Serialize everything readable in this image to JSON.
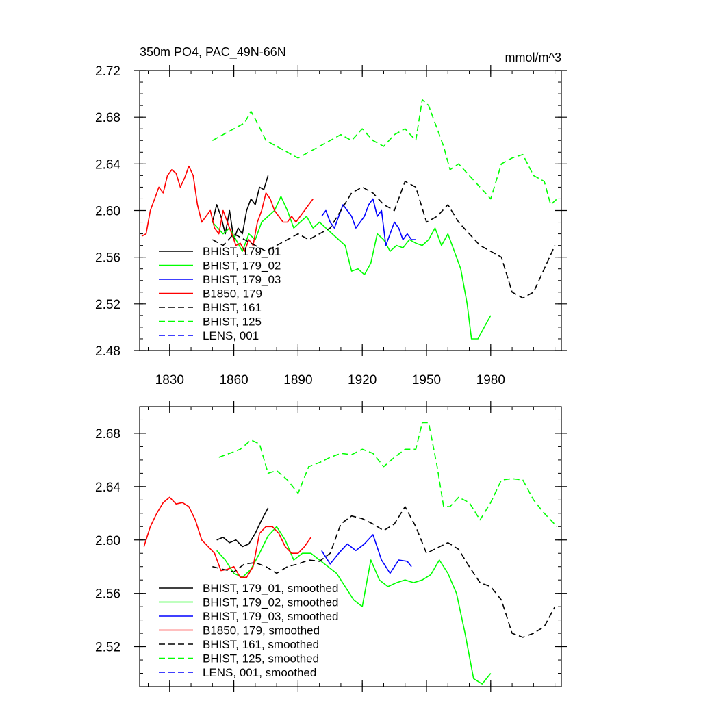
{
  "header": {
    "title": "350m PO4, PAC_49N-66N",
    "units": "mmol/m^3"
  },
  "chart_data": [
    {
      "type": "line",
      "title": "350m PO4, PAC_49N-66N",
      "units_label": "mmol/m^3",
      "xlabel": "",
      "ylabel": "",
      "xlim": [
        1816,
        2013
      ],
      "ylim": [
        2.48,
        2.72
      ],
      "xticks": [
        1830,
        1860,
        1890,
        1920,
        1950,
        1980
      ],
      "xtick_labels": [
        "1830",
        "1860",
        "1890",
        "1920",
        "1950",
        "1980"
      ],
      "yticks": [
        2.48,
        2.52,
        2.56,
        2.6,
        2.64,
        2.68,
        2.72
      ],
      "ytick_labels": [
        "2.48",
        "2.52",
        "2.56",
        "2.60",
        "2.64",
        "2.68",
        "2.72"
      ],
      "grid": false,
      "legend_position": "lower-left",
      "series": [
        {
          "name": "BHIST, 179_01",
          "color": "#000000",
          "dash": "solid",
          "x": [
            1850,
            1852,
            1854,
            1856,
            1858,
            1860,
            1862,
            1864,
            1866,
            1868,
            1870,
            1872,
            1874,
            1876
          ],
          "y": [
            2.59,
            2.605,
            2.595,
            2.58,
            2.6,
            2.575,
            2.585,
            2.58,
            2.6,
            2.61,
            2.605,
            2.62,
            2.618,
            2.63
          ]
        },
        {
          "name": "BHIST, 179_02",
          "color": "#00ff00",
          "dash": "solid",
          "x": [
            1850,
            1855,
            1858,
            1861,
            1864,
            1867,
            1870,
            1873,
            1876,
            1879,
            1882,
            1885,
            1888,
            1891,
            1894,
            1897,
            1900,
            1903,
            1906,
            1909,
            1912,
            1915,
            1918,
            1921,
            1924,
            1927,
            1930,
            1933,
            1936,
            1939,
            1942,
            1945,
            1948,
            1951,
            1954,
            1957,
            1960,
            1963,
            1966,
            1969,
            1971,
            1974,
            1977,
            1980
          ],
          "y": [
            2.59,
            2.58,
            2.585,
            2.575,
            2.565,
            2.58,
            2.575,
            2.59,
            2.595,
            2.6,
            2.612,
            2.6,
            2.585,
            2.59,
            2.595,
            2.585,
            2.59,
            2.585,
            2.58,
            2.575,
            2.57,
            2.548,
            2.55,
            2.545,
            2.555,
            2.58,
            2.575,
            2.565,
            2.57,
            2.568,
            2.575,
            2.572,
            2.57,
            2.575,
            2.585,
            2.57,
            2.58,
            2.565,
            2.55,
            2.52,
            2.49,
            2.49,
            2.5,
            2.51
          ]
        },
        {
          "name": "BHIST, 179_03",
          "color": "#0000ff",
          "dash": "solid",
          "x": [
            1901,
            1903,
            1905,
            1907,
            1909,
            1911,
            1913,
            1915,
            1917,
            1919,
            1921,
            1923,
            1925,
            1927,
            1929,
            1931,
            1933,
            1935,
            1937,
            1939,
            1941,
            1943,
            1945
          ],
          "y": [
            2.595,
            2.6,
            2.59,
            2.585,
            2.595,
            2.605,
            2.6,
            2.595,
            2.585,
            2.59,
            2.595,
            2.605,
            2.61,
            2.595,
            2.6,
            2.57,
            2.58,
            2.59,
            2.585,
            2.575,
            2.58,
            2.575,
            2.575
          ]
        },
        {
          "name": "B1850, 179",
          "color": "#ff0000",
          "dash": "solid",
          "x": [
            1817,
            1819,
            1821,
            1823,
            1825,
            1827,
            1829,
            1831,
            1833,
            1835,
            1837,
            1839,
            1841,
            1843,
            1845,
            1847,
            1849,
            1851,
            1853,
            1855,
            1857,
            1859,
            1861,
            1863,
            1865,
            1867,
            1869,
            1871,
            1873,
            1875,
            1877,
            1879,
            1881,
            1883,
            1885,
            1887,
            1889,
            1891,
            1893,
            1895,
            1897
          ],
          "y": [
            2.578,
            2.58,
            2.6,
            2.61,
            2.62,
            2.615,
            2.63,
            2.635,
            2.632,
            2.62,
            2.628,
            2.638,
            2.63,
            2.605,
            2.59,
            2.595,
            2.6,
            2.585,
            2.58,
            2.6,
            2.59,
            2.58,
            2.57,
            2.572,
            2.565,
            2.575,
            2.57,
            2.59,
            2.6,
            2.615,
            2.61,
            2.6,
            2.595,
            2.59,
            2.59,
            2.595,
            2.59,
            2.595,
            2.6,
            2.605,
            2.61
          ]
        },
        {
          "name": "BHIST, 161",
          "color": "#000000",
          "dash": "dashed",
          "x": [
            1850,
            1855,
            1860,
            1865,
            1870,
            1875,
            1880,
            1885,
            1890,
            1895,
            1900,
            1905,
            1910,
            1915,
            1920,
            1925,
            1930,
            1935,
            1940,
            1945,
            1950,
            1955,
            1960,
            1965,
            1970,
            1975,
            1980,
            1985,
            1990,
            1995,
            2000,
            2005,
            2010
          ],
          "y": [
            2.575,
            2.57,
            2.58,
            2.575,
            2.57,
            2.565,
            2.57,
            2.575,
            2.58,
            2.575,
            2.58,
            2.585,
            2.6,
            2.615,
            2.62,
            2.615,
            2.605,
            2.6,
            2.625,
            2.62,
            2.59,
            2.595,
            2.605,
            2.59,
            2.58,
            2.57,
            2.565,
            2.56,
            2.53,
            2.525,
            2.53,
            2.55,
            2.57
          ]
        },
        {
          "name": "BHIST, 125",
          "color": "#00ff00",
          "dash": "dashed",
          "x": [
            1850,
            1855,
            1860,
            1865,
            1868,
            1871,
            1875,
            1880,
            1885,
            1890,
            1895,
            1900,
            1905,
            1910,
            1915,
            1920,
            1925,
            1930,
            1935,
            1940,
            1945,
            1948,
            1951,
            1955,
            1958,
            1961,
            1965,
            1970,
            1975,
            1980,
            1985,
            1990,
            1995,
            2000,
            2005,
            2008,
            2011
          ],
          "y": [
            2.66,
            2.665,
            2.67,
            2.675,
            2.685,
            2.675,
            2.66,
            2.655,
            2.65,
            2.645,
            2.65,
            2.655,
            2.66,
            2.665,
            2.66,
            2.67,
            2.66,
            2.655,
            2.665,
            2.67,
            2.66,
            2.695,
            2.69,
            2.67,
            2.655,
            2.635,
            2.64,
            2.63,
            2.62,
            2.61,
            2.64,
            2.645,
            2.648,
            2.63,
            2.625,
            2.605,
            2.61
          ]
        },
        {
          "name": "LENS, 001",
          "color": "#0000ff",
          "dash": "dashed",
          "x": [],
          "y": []
        }
      ]
    },
    {
      "type": "line",
      "title": "",
      "xlabel": "",
      "ylabel": "",
      "xlim": [
        1816,
        2013
      ],
      "ylim": [
        2.49,
        2.7
      ],
      "xticks": [
        1830,
        1860,
        1890,
        1920,
        1950,
        1980
      ],
      "xtick_labels": [],
      "yticks": [
        2.52,
        2.56,
        2.6,
        2.64,
        2.68
      ],
      "ytick_labels": [
        "2.52",
        "2.56",
        "2.60",
        "2.64",
        "2.68"
      ],
      "grid": false,
      "legend_position": "lower-left",
      "series": [
        {
          "name": "BHIST, 179_01, smoothed",
          "color": "#000000",
          "dash": "solid",
          "x": [
            1852,
            1855,
            1858,
            1861,
            1864,
            1867,
            1870,
            1873,
            1876
          ],
          "y": [
            2.6,
            2.602,
            2.598,
            2.6,
            2.595,
            2.597,
            2.605,
            2.615,
            2.624
          ]
        },
        {
          "name": "BHIST, 179_02, smoothed",
          "color": "#00ff00",
          "dash": "solid",
          "x": [
            1852,
            1856,
            1860,
            1864,
            1868,
            1872,
            1876,
            1880,
            1884,
            1888,
            1892,
            1896,
            1900,
            1904,
            1908,
            1912,
            1916,
            1920,
            1924,
            1928,
            1932,
            1936,
            1940,
            1944,
            1948,
            1952,
            1956,
            1960,
            1964,
            1968,
            1972,
            1976,
            1980
          ],
          "y": [
            2.592,
            2.585,
            2.575,
            2.572,
            2.578,
            2.59,
            2.603,
            2.61,
            2.6,
            2.585,
            2.59,
            2.59,
            2.585,
            2.58,
            2.575,
            2.565,
            2.555,
            2.55,
            2.585,
            2.57,
            2.565,
            2.568,
            2.57,
            2.568,
            2.57,
            2.574,
            2.585,
            2.575,
            2.56,
            2.53,
            2.496,
            2.492,
            2.5
          ]
        },
        {
          "name": "BHIST, 179_03, smoothed",
          "color": "#0000ff",
          "dash": "solid",
          "x": [
            1901,
            1905,
            1909,
            1913,
            1917,
            1921,
            1925,
            1929,
            1933,
            1937,
            1941,
            1943
          ],
          "y": [
            2.592,
            2.582,
            2.59,
            2.597,
            2.592,
            2.597,
            2.604,
            2.585,
            2.575,
            2.585,
            2.584,
            2.58
          ]
        },
        {
          "name": "B1850, 179, smoothed",
          "color": "#ff0000",
          "dash": "solid",
          "x": [
            1818,
            1821,
            1824,
            1827,
            1830,
            1833,
            1836,
            1839,
            1842,
            1845,
            1848,
            1851,
            1854,
            1857,
            1860,
            1863,
            1866,
            1869,
            1872,
            1875,
            1878,
            1881,
            1884,
            1887,
            1890,
            1893,
            1896
          ],
          "y": [
            2.595,
            2.61,
            2.62,
            2.628,
            2.632,
            2.627,
            2.628,
            2.625,
            2.615,
            2.6,
            2.595,
            2.59,
            2.577,
            2.578,
            2.58,
            2.572,
            2.572,
            2.58,
            2.605,
            2.61,
            2.61,
            2.605,
            2.595,
            2.59,
            2.59,
            2.595,
            2.602
          ]
        },
        {
          "name": "BHIST, 161, smoothed",
          "color": "#000000",
          "dash": "dashed",
          "x": [
            1850,
            1855,
            1860,
            1865,
            1870,
            1875,
            1880,
            1885,
            1890,
            1895,
            1900,
            1905,
            1910,
            1915,
            1920,
            1925,
            1930,
            1935,
            1940,
            1945,
            1950,
            1955,
            1960,
            1965,
            1970,
            1975,
            1980,
            1985,
            1990,
            1995,
            2000,
            2005,
            2010
          ],
          "y": [
            2.58,
            2.578,
            2.576,
            2.582,
            2.583,
            2.58,
            2.575,
            2.58,
            2.582,
            2.585,
            2.584,
            2.59,
            2.612,
            2.618,
            2.616,
            2.612,
            2.607,
            2.612,
            2.625,
            2.61,
            2.59,
            2.594,
            2.598,
            2.593,
            2.58,
            2.568,
            2.565,
            2.555,
            2.53,
            2.527,
            2.53,
            2.535,
            2.55
          ]
        },
        {
          "name": "BHIST, 125, smoothed",
          "color": "#00ff00",
          "dash": "dashed",
          "x": [
            1853,
            1858,
            1863,
            1868,
            1872,
            1876,
            1880,
            1885,
            1890,
            1895,
            1900,
            1905,
            1910,
            1915,
            1920,
            1925,
            1930,
            1935,
            1940,
            1945,
            1948,
            1951,
            1955,
            1958,
            1961,
            1965,
            1970,
            1975,
            1980,
            1985,
            1990,
            1995,
            2000,
            2005,
            2011
          ],
          "y": [
            2.662,
            2.665,
            2.668,
            2.675,
            2.672,
            2.65,
            2.652,
            2.645,
            2.635,
            2.655,
            2.658,
            2.662,
            2.665,
            2.664,
            2.668,
            2.665,
            2.655,
            2.662,
            2.668,
            2.668,
            2.688,
            2.688,
            2.655,
            2.625,
            2.625,
            2.632,
            2.628,
            2.615,
            2.628,
            2.645,
            2.646,
            2.645,
            2.63,
            2.62,
            2.61
          ]
        },
        {
          "name": "LENS, 001, smoothed",
          "color": "#0000ff",
          "dash": "dashed",
          "x": [],
          "y": []
        }
      ]
    }
  ]
}
